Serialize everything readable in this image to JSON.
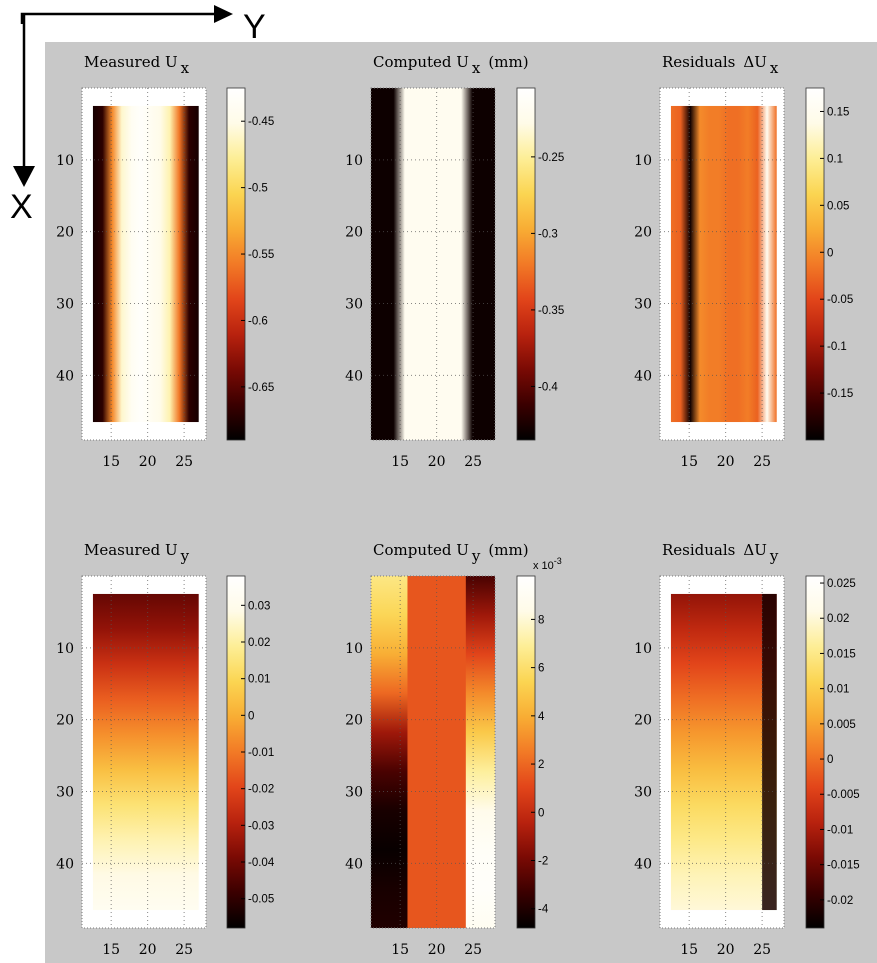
{
  "figure": {
    "axis_arrow_y": "Y",
    "axis_arrow_x": "X",
    "colormap": [
      "#000000",
      "#3a0000",
      "#7a0a04",
      "#b8220e",
      "#e2451a",
      "#f27a26",
      "#f8ad34",
      "#fbd552",
      "#fdee96",
      "#fffbe8",
      "#ffffff"
    ],
    "background_color": "#c8c8c8"
  },
  "chart_data": [
    {
      "type": "heatmap",
      "title_main": "Measured U",
      "title_sub": "x",
      "title_tail": "",
      "title_delta": false,
      "xticks": [
        "15",
        "20",
        "25"
      ],
      "xtick_values": [
        15,
        20,
        25
      ],
      "xlim": [
        11,
        28
      ],
      "yticks": [
        "10",
        "20",
        "30",
        "40"
      ],
      "ytick_values": [
        10,
        20,
        30,
        40
      ],
      "ylim": [
        0,
        49
      ],
      "data_extent": {
        "x": [
          12.5,
          27
        ],
        "y": [
          2.5,
          46.5
        ]
      },
      "columns": [
        -0.68,
        -0.67,
        -0.55,
        -0.46,
        -0.44,
        -0.43,
        -0.44,
        -0.45,
        -0.47,
        -0.56,
        -0.67,
        -0.68
      ],
      "colorbar": {
        "clim": [
          -0.69,
          -0.425
        ],
        "ticks": [
          "-0.45",
          "-0.5",
          "-0.55",
          "-0.6",
          "-0.65"
        ],
        "tick_values": [
          -0.45,
          -0.5,
          -0.55,
          -0.6,
          -0.65
        ],
        "multiplier": ""
      }
    },
    {
      "type": "heatmap",
      "title_main": "Computed U",
      "title_sub": "x",
      "title_tail": "(mm)",
      "title_delta": false,
      "xticks": [
        "15",
        "20",
        "25"
      ],
      "xtick_values": [
        15,
        20,
        25
      ],
      "xlim": [
        11,
        28
      ],
      "yticks": [
        "10",
        "20",
        "30",
        "40"
      ],
      "ytick_values": [
        10,
        20,
        30,
        40
      ],
      "ylim": [
        0,
        49
      ],
      "data_extent": {
        "x": [
          11,
          28
        ],
        "y": [
          0,
          49
        ]
      },
      "columns": [
        -0.43,
        -0.43,
        -0.43,
        -0.22,
        -0.22,
        -0.22,
        -0.22,
        -0.22,
        -0.22,
        -0.43,
        -0.43,
        -0.43
      ],
      "colorbar": {
        "clim": [
          -0.435,
          -0.205
        ],
        "ticks": [
          "-0.25",
          "-0.3",
          "-0.35",
          "-0.4"
        ],
        "tick_values": [
          -0.25,
          -0.3,
          -0.35,
          -0.4
        ],
        "multiplier": ""
      }
    },
    {
      "type": "heatmap",
      "title_main": "Residuals",
      "title_sub": "x",
      "title_tail": "",
      "title_delta": true,
      "xticks": [
        "15",
        "20",
        "25"
      ],
      "xtick_values": [
        15,
        20,
        25
      ],
      "xlim": [
        11,
        28
      ],
      "yticks": [
        "10",
        "20",
        "30",
        "40"
      ],
      "ytick_values": [
        10,
        20,
        30,
        40
      ],
      "ylim": [
        0,
        49
      ],
      "data_extent": {
        "x": [
          12.5,
          27
        ],
        "y": [
          2.5,
          46.5
        ]
      },
      "columns": [
        -0.02,
        -0.03,
        -0.19,
        0.0,
        -0.01,
        -0.01,
        -0.02,
        -0.02,
        -0.01,
        -0.03,
        0.15,
        -0.02
      ],
      "colorbar": {
        "clim": [
          -0.2,
          0.175
        ],
        "ticks": [
          "0.15",
          "0.1",
          "0.05",
          "0",
          "-0.05",
          "-0.1",
          "-0.15"
        ],
        "tick_values": [
          0.15,
          0.1,
          0.05,
          0,
          -0.05,
          -0.1,
          -0.15
        ],
        "multiplier": ""
      }
    },
    {
      "type": "heatmap",
      "title_main": "Measured U",
      "title_sub": "y",
      "title_tail": "",
      "title_delta": false,
      "xticks": [
        "15",
        "20",
        "25"
      ],
      "xtick_values": [
        15,
        20,
        25
      ],
      "xlim": [
        11,
        28
      ],
      "yticks": [
        "10",
        "20",
        "30",
        "40"
      ],
      "ytick_values": [
        10,
        20,
        30,
        40
      ],
      "ylim": [
        0,
        49
      ],
      "data_extent": {
        "x": [
          12.5,
          27
        ],
        "y": [
          2.5,
          46.5
        ]
      },
      "rows": [
        -0.042,
        -0.035,
        -0.025,
        -0.015,
        -0.006,
        0.004,
        0.014,
        0.022,
        0.028,
        0.032
      ],
      "colorbar": {
        "clim": [
          -0.058,
          0.038
        ],
        "ticks": [
          "0.03",
          "0.02",
          "0.01",
          "0",
          "-0.01",
          "-0.02",
          "-0.03",
          "-0.04",
          "-0.05"
        ],
        "tick_values": [
          0.03,
          0.02,
          0.01,
          0,
          -0.01,
          -0.02,
          -0.03,
          -0.04,
          -0.05
        ],
        "multiplier": ""
      }
    },
    {
      "type": "heatmap",
      "title_main": "Computed U",
      "title_sub": "y",
      "title_tail": "(mm)",
      "title_delta": false,
      "xticks": [
        "15",
        "20",
        "25"
      ],
      "xtick_values": [
        15,
        20,
        25
      ],
      "xlim": [
        11,
        28
      ],
      "yticks": [
        "10",
        "20",
        "30",
        "40"
      ],
      "ytick_values": [
        10,
        20,
        30,
        40
      ],
      "ylim": [
        0,
        49
      ],
      "data_extent": {
        "x": [
          11,
          28
        ],
        "y": [
          0,
          49
        ]
      },
      "left_band": [
        6.5,
        5.5,
        4.0,
        2.0,
        -1.0,
        -3.0,
        -4.2,
        -4.6,
        -4.2,
        -4.0
      ],
      "mid_value": 1.5,
      "right_band": [
        -3.0,
        -1.0,
        1.0,
        3.0,
        5.0,
        7.0,
        8.5,
        9.3,
        9.5,
        9.0
      ],
      "colorbar": {
        "clim": [
          -4.8,
          9.8
        ],
        "ticks": [
          "8",
          "6",
          "4",
          "2",
          "0",
          "-2",
          "-4"
        ],
        "tick_values": [
          8,
          6,
          4,
          2,
          0,
          -2,
          -4
        ],
        "multiplier": "x 10"
      }
    },
    {
      "type": "heatmap",
      "title_main": "Residuals",
      "title_sub": "y",
      "title_tail": "",
      "title_delta": true,
      "xticks": [
        "15",
        "20",
        "25"
      ],
      "xtick_values": [
        15,
        20,
        25
      ],
      "xlim": [
        11,
        28
      ],
      "yticks": [
        "10",
        "20",
        "30",
        "40"
      ],
      "ytick_values": [
        10,
        20,
        30,
        40
      ],
      "ylim": [
        0,
        49
      ],
      "data_extent": {
        "x": [
          12.5,
          27
        ],
        "y": [
          2.5,
          46.5
        ]
      },
      "rows": [
        -0.012,
        -0.008,
        -0.004,
        0.0,
        0.004,
        0.008,
        0.012,
        0.015,
        0.018,
        0.02
      ],
      "right_dark": -0.022,
      "colorbar": {
        "clim": [
          -0.024,
          0.026
        ],
        "ticks": [
          "0.025",
          "0.02",
          "0.015",
          "0.01",
          "0.005",
          "0",
          "-0.005",
          "-0.01",
          "-0.015",
          "-0.02"
        ],
        "tick_values": [
          0.025,
          0.02,
          0.015,
          0.01,
          0.005,
          0,
          -0.005,
          -0.01,
          -0.015,
          -0.02
        ],
        "multiplier": ""
      }
    }
  ]
}
